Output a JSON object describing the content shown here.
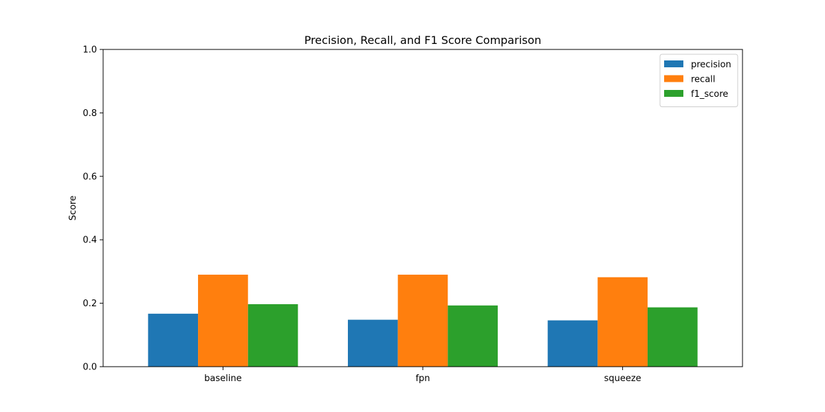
{
  "chart_data": {
    "type": "bar",
    "title": "Precision, Recall, and F1 Score Comparison",
    "xlabel": "",
    "ylabel": "Score",
    "ylim": [
      0,
      1.0
    ],
    "yticks": [
      "0.0",
      "0.2",
      "0.4",
      "0.6",
      "0.8",
      "1.0"
    ],
    "categories": [
      "baseline",
      "fpn",
      "squeeze"
    ],
    "series": [
      {
        "name": "precision",
        "color": "#1f77b4",
        "values": [
          0.167,
          0.148,
          0.146
        ]
      },
      {
        "name": "recall",
        "color": "#ff7f0e",
        "values": [
          0.29,
          0.29,
          0.282
        ]
      },
      {
        "name": "f1_score",
        "color": "#2ca02c",
        "values": [
          0.197,
          0.193,
          0.187
        ]
      }
    ],
    "legend_position": "top-right",
    "grid": false
  }
}
